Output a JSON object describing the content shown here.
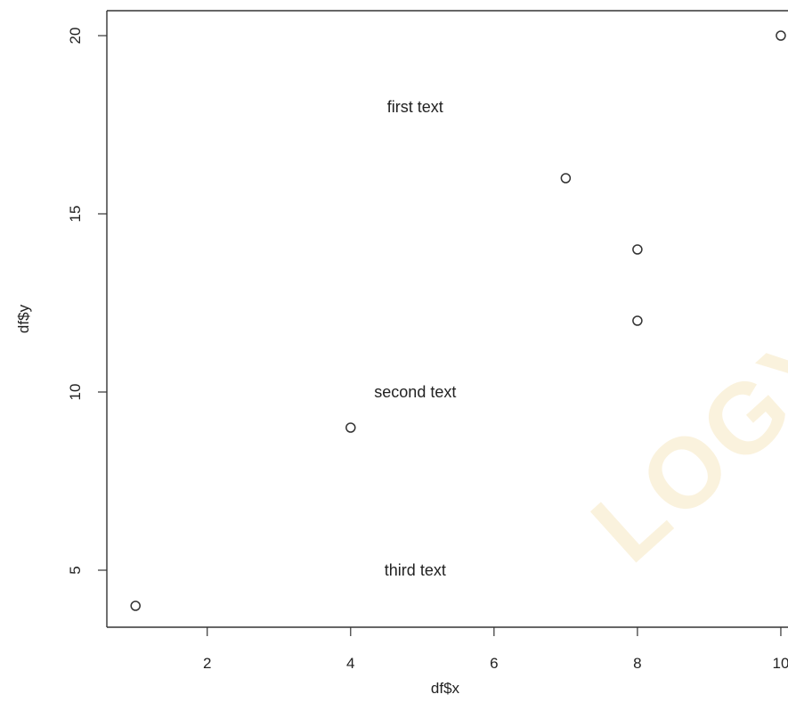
{
  "chart_data": {
    "type": "scatter",
    "xlabel": "df$x",
    "ylabel": "df$y",
    "xlim": [
      0.6,
      10.1
    ],
    "ylim": [
      3.4,
      20.7
    ],
    "x_ticks": [
      2,
      4,
      6,
      8,
      10
    ],
    "y_ticks": [
      5,
      10,
      15,
      20
    ],
    "points": [
      {
        "x": 1,
        "y": 4
      },
      {
        "x": 4,
        "y": 9
      },
      {
        "x": 7,
        "y": 16
      },
      {
        "x": 8,
        "y": 14
      },
      {
        "x": 8,
        "y": 12
      },
      {
        "x": 10,
        "y": 20
      }
    ],
    "annotations": [
      {
        "text": "first text",
        "x": 5,
        "y": 18
      },
      {
        "text": "second text",
        "x": 5,
        "y": 10
      },
      {
        "text": "third text",
        "x": 5,
        "y": 5
      }
    ],
    "grid": false,
    "marker": "open-circle",
    "colors": {
      "points": "#333333",
      "axis": "#333333",
      "text": "#222222"
    }
  }
}
